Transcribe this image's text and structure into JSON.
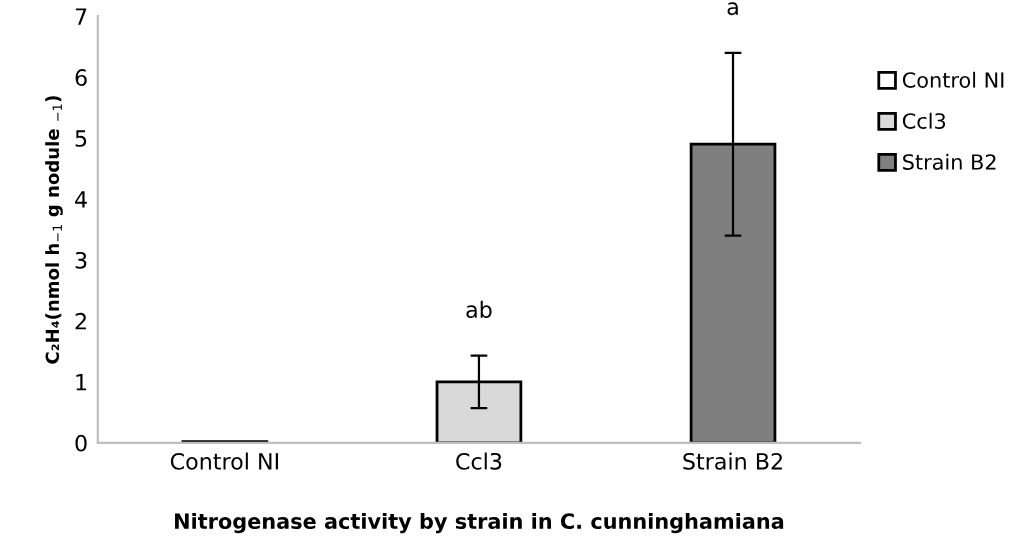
{
  "chart_data": {
    "type": "bar",
    "categories": [
      "Control NI",
      "Ccl3",
      "Strain B2"
    ],
    "xlabel": "Nitrogenase activity by strain in C. cunninghamiana",
    "ylabel": "C₂H₄(nmol h$_{−1}$ g nodule $_{−1}$)",
    "series": [
      {
        "name": "Control NI",
        "color": "#ffffff",
        "values": [
          0.02,
          null,
          null
        ],
        "errors": [
          null,
          null,
          null
        ]
      },
      {
        "name": "Ccl3",
        "color": "#d9d9d9",
        "values": [
          null,
          1.0,
          null
        ],
        "errors": [
          null,
          0.43,
          null
        ]
      },
      {
        "name": "Strain B2",
        "color": "#7f7f7f",
        "values": [
          null,
          null,
          4.9
        ],
        "errors": [
          null,
          null,
          1.5
        ]
      }
    ],
    "annotations": [
      "ab",
      "a"
    ],
    "ylim": [
      0,
      7
    ],
    "yticks": [
      0,
      1,
      2,
      3,
      4,
      5,
      6,
      7
    ],
    "grid": false,
    "legend": "right"
  }
}
